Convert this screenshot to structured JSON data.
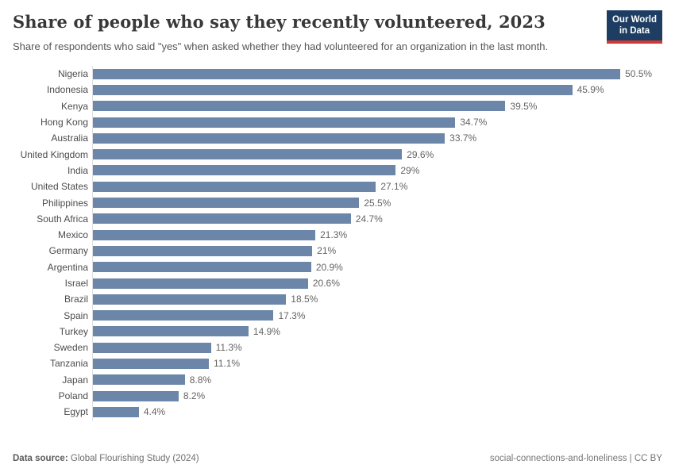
{
  "header": {
    "title": "Share of people who say they recently volunteered, 2023",
    "subtitle": "Share of respondents who said \"yes\" when asked whether they had volunteered for an organization in the last month.",
    "logo": {
      "line1": "Our World",
      "line2": "in Data"
    }
  },
  "chart_data": {
    "type": "bar",
    "orientation": "horizontal",
    "title": "Share of people who say they recently volunteered, 2023",
    "xlabel": "",
    "ylabel": "",
    "xlim": [
      0,
      50.5
    ],
    "grid": false,
    "legend": false,
    "bar_color": "#6c86a9",
    "categories": [
      "Nigeria",
      "Indonesia",
      "Kenya",
      "Hong Kong",
      "Australia",
      "United Kingdom",
      "India",
      "United States",
      "Philippines",
      "South Africa",
      "Mexico",
      "Germany",
      "Argentina",
      "Israel",
      "Brazil",
      "Spain",
      "Turkey",
      "Sweden",
      "Tanzania",
      "Japan",
      "Poland",
      "Egypt"
    ],
    "values": [
      50.5,
      45.9,
      39.5,
      34.7,
      33.7,
      29.6,
      29,
      27.1,
      25.5,
      24.7,
      21.3,
      21,
      20.9,
      20.6,
      18.5,
      17.3,
      14.9,
      11.3,
      11.1,
      8.8,
      8.2,
      4.4
    ],
    "value_labels": [
      "50.5%",
      "45.9%",
      "39.5%",
      "34.7%",
      "33.7%",
      "29.6%",
      "29%",
      "27.1%",
      "25.5%",
      "24.7%",
      "21.3%",
      "21%",
      "20.9%",
      "20.6%",
      "18.5%",
      "17.3%",
      "14.9%",
      "11.3%",
      "11.1%",
      "8.8%",
      "8.2%",
      "4.4%"
    ]
  },
  "footer": {
    "datasource_label": "Data source:",
    "datasource_value": "Global Flourishing Study (2024)",
    "right_text": "social-connections-and-loneliness | CC BY"
  },
  "colors": {
    "bar": "#6c86a9",
    "logo_navy": "#1d3d63",
    "logo_red": "#cf3b34",
    "title_text": "#383838",
    "subtitle_text": "#555555",
    "axis_line": "#dedede"
  }
}
